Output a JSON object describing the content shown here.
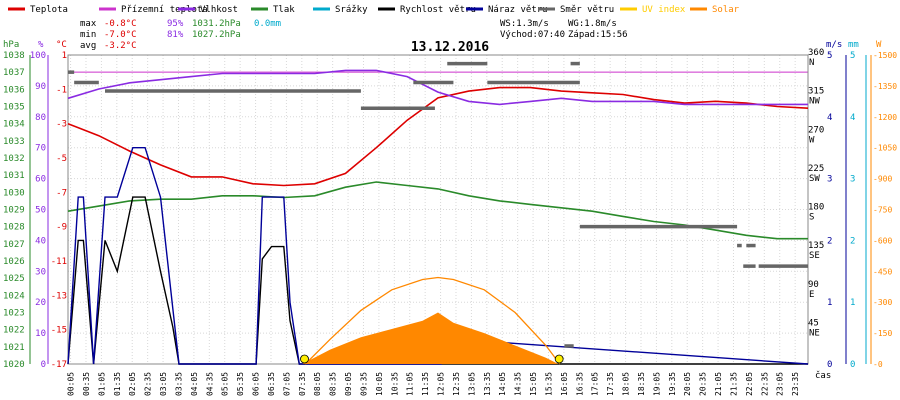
{
  "legend": [
    {
      "label": "Teplota",
      "color": "#dd0000"
    },
    {
      "label": "Přízemní teplota",
      "color": "#cc33cc"
    },
    {
      "label": "Vlhkost",
      "color": "#8a2be2"
    },
    {
      "label": "Tlak",
      "color": "#2a8a2a"
    },
    {
      "label": "Srážky",
      "color": "#00aacc"
    },
    {
      "label": "Rychlost větru",
      "color": "#000000"
    },
    {
      "label": "Náraz větru",
      "color": "#000099"
    },
    {
      "label": "Směr větru",
      "color": "#666666"
    },
    {
      "label": "UV index",
      "color": "#ffcc00"
    },
    {
      "label": "Solar",
      "color": "#ff8800"
    }
  ],
  "stats": {
    "max_label": "max",
    "max_temp": "-0.8°C",
    "max_hum": "95%",
    "max_press": "1031.2hPa",
    "max_rain": "0.0mm",
    "min_label": "min",
    "min_temp": "-7.0°C",
    "min_hum": "81%",
    "min_press": "1027.2hPa",
    "avg_label": "avg",
    "avg_temp": "-3.2°C",
    "ws": "WS:1.3m/s",
    "wg": "WG:1.8m/s",
    "sunrise": "Východ:07:40",
    "sunset": "Západ:15:56"
  },
  "chart_data": {
    "type": "line",
    "title": "13.12.2016",
    "xlabel": "čas",
    "x_ticks": [
      "00:05",
      "00:35",
      "01:05",
      "01:35",
      "02:05",
      "02:35",
      "03:05",
      "03:35",
      "04:05",
      "04:35",
      "05:05",
      "05:35",
      "06:05",
      "06:35",
      "07:05",
      "07:35",
      "08:05",
      "08:35",
      "09:05",
      "09:35",
      "10:05",
      "10:35",
      "11:05",
      "11:35",
      "12:05",
      "12:35",
      "13:05",
      "13:35",
      "14:05",
      "14:35",
      "15:05",
      "15:35",
      "16:05",
      "16:35",
      "17:05",
      "17:35",
      "18:05",
      "18:35",
      "19:05",
      "19:35",
      "20:05",
      "20:35",
      "21:05",
      "21:35",
      "22:05",
      "22:35",
      "23:05",
      "23:35"
    ],
    "axes": {
      "pressure": {
        "unit": "hPa",
        "ticks": [
          "1038",
          "1037",
          "1036",
          "1035",
          "1034",
          "1033",
          "1032",
          "1031",
          "1030",
          "1029",
          "1028",
          "1027",
          "1026",
          "1025",
          "1024",
          "1023",
          "1022",
          "1021",
          "1020"
        ],
        "ylim": [
          1020,
          1038
        ]
      },
      "humidity": {
        "unit": "%",
        "ticks": [
          "100",
          "90",
          "80",
          "70",
          "60",
          "50",
          "40",
          "30",
          "20",
          "10",
          "0"
        ],
        "ylim": [
          0,
          100
        ]
      },
      "temperature": {
        "unit": "°C",
        "ticks": [
          "1",
          "-1",
          "-3",
          "-5",
          "-7",
          "-9",
          "-11",
          "-13",
          "-15",
          "-17"
        ],
        "ylim": [
          -17,
          1
        ]
      },
      "direction": {
        "ticks": [
          "360",
          "315",
          "270",
          "225",
          "180",
          "135",
          "90",
          "45"
        ],
        "labels": [
          "N",
          "NW",
          "W",
          "SW",
          "S",
          "SE",
          "E",
          "NE"
        ],
        "ylim": [
          0,
          360
        ]
      },
      "wind": {
        "unit": "m/s",
        "ticks": [
          "5",
          "4",
          "3",
          "2",
          "1",
          "0"
        ],
        "ylim": [
          0,
          5
        ]
      },
      "rain": {
        "unit": "mm",
        "ticks": [
          "5",
          "4",
          "3",
          "2",
          "1",
          "0"
        ],
        "ylim": [
          0,
          5
        ]
      },
      "solar": {
        "unit": "W",
        "ticks": [
          "1500",
          "1350",
          "1200",
          "1050",
          "900",
          "750",
          "600",
          "450",
          "300",
          "150",
          "0"
        ],
        "ylim": [
          0,
          1500
        ]
      }
    },
    "series": [
      {
        "name": "Teplota",
        "axis": "temperature",
        "x": [
          0,
          1,
          2,
          3,
          4,
          5,
          6,
          7,
          8,
          9,
          10,
          11,
          12,
          13,
          14,
          15,
          16,
          17,
          18,
          19,
          20,
          21,
          22,
          23,
          24
        ],
        "values": [
          -3.0,
          -3.7,
          -4.6,
          -5.4,
          -6.1,
          -6.1,
          -6.5,
          -6.6,
          -6.5,
          -5.9,
          -4.4,
          -2.8,
          -1.5,
          -1.1,
          -0.9,
          -0.9,
          -1.1,
          -1.2,
          -1.3,
          -1.6,
          -1.8,
          -1.7,
          -1.8,
          -2.0,
          -2.1
        ]
      },
      {
        "name": "Vlhkost",
        "axis": "humidity",
        "x": [
          0,
          1,
          2,
          3,
          4,
          5,
          6,
          7,
          8,
          9,
          10,
          11,
          12,
          13,
          14,
          15,
          16,
          17,
          18,
          19,
          20,
          21,
          22,
          23,
          24
        ],
        "values": [
          86,
          89,
          91,
          92,
          93,
          94,
          94,
          94,
          94,
          95,
          95,
          93,
          88,
          85,
          84,
          85,
          86,
          85,
          85,
          85,
          84,
          84,
          84,
          84,
          84
        ],
        "color": "#8a2be2"
      },
      {
        "name": "Tlak",
        "axis": "pressure",
        "x": [
          0,
          1,
          2,
          3,
          4,
          5,
          6,
          7,
          8,
          9,
          10,
          11,
          12,
          13,
          14,
          15,
          16,
          17,
          18,
          19,
          20,
          21,
          22,
          23,
          24
        ],
        "values": [
          1028.9,
          1029.2,
          1029.5,
          1029.6,
          1029.6,
          1029.8,
          1029.8,
          1029.7,
          1029.8,
          1030.3,
          1030.6,
          1030.4,
          1030.2,
          1029.8,
          1029.5,
          1029.3,
          1029.1,
          1028.9,
          1028.6,
          1028.3,
          1028.1,
          1027.8,
          1027.5,
          1027.3,
          1027.3
        ]
      },
      {
        "name": "Rychlost větru",
        "axis": "wind",
        "x": [
          0,
          0.33,
          0.5,
          0.83,
          1.2,
          1.6,
          2.1,
          2.5,
          3.0,
          3.4,
          3.6,
          4.0,
          6.1,
          6.3,
          6.6,
          7.0,
          7.2,
          7.5,
          24
        ],
        "values": [
          0,
          2,
          2,
          0,
          2,
          1.5,
          2.7,
          2.7,
          1.5,
          0.6,
          0,
          0,
          0,
          1.7,
          1.9,
          1.9,
          0.7,
          0,
          0
        ]
      },
      {
        "name": "Náraz větru",
        "axis": "wind",
        "x": [
          0,
          0.33,
          0.5,
          0.83,
          1.2,
          1.6,
          2.1,
          2.5,
          3.0,
          3.4,
          3.6,
          4.0,
          6.1,
          6.3,
          6.6,
          7.0,
          7.2,
          7.5,
          12.1,
          12.3,
          12.6,
          24
        ],
        "values": [
          0,
          2.7,
          2.7,
          0,
          2.7,
          2.7,
          3.5,
          3.5,
          2.7,
          0.9,
          0,
          0,
          0,
          2.7,
          2.7,
          2.7,
          1.0,
          0,
          0,
          0.4,
          0.4,
          0
        ]
      },
      {
        "name": "Solar",
        "axis": "solar",
        "x": [
          7.6,
          8.5,
          9.5,
          10.5,
          11.5,
          12.0,
          12.5,
          13.5,
          14.5,
          15.5,
          15.9
        ],
        "values": [
          0,
          70,
          130,
          170,
          210,
          250,
          200,
          150,
          90,
          30,
          0
        ]
      },
      {
        "name": "Solar max",
        "axis": "solar",
        "x": [
          7.7,
          8.5,
          9.5,
          10.5,
          11.5,
          12.0,
          12.5,
          13.5,
          14.5,
          15.5,
          15.95
        ],
        "values": [
          0,
          120,
          260,
          360,
          410,
          420,
          410,
          360,
          250,
          90,
          0
        ]
      }
    ],
    "wind_direction_segments": [
      {
        "start": 0,
        "end": 0.2,
        "deg": 340
      },
      {
        "start": 0.2,
        "end": 1.0,
        "deg": 328
      },
      {
        "start": 1.2,
        "end": 9.5,
        "deg": 318
      },
      {
        "start": 9.5,
        "end": 11.9,
        "deg": 298
      },
      {
        "start": 11.2,
        "end": 12.5,
        "deg": 328
      },
      {
        "start": 12.3,
        "end": 13.6,
        "deg": 350
      },
      {
        "start": 13.6,
        "end": 16.6,
        "deg": 328
      },
      {
        "start": 16.3,
        "end": 16.6,
        "deg": 350
      },
      {
        "start": 16.6,
        "end": 21.7,
        "deg": 160
      },
      {
        "start": 21.7,
        "end": 21.85,
        "deg": 138
      },
      {
        "start": 22.0,
        "end": 22.3,
        "deg": 138
      },
      {
        "start": 21.9,
        "end": 22.3,
        "deg": 114
      },
      {
        "start": 22.4,
        "end": 24,
        "deg": 114
      },
      {
        "start": 16.1,
        "end": 16.4,
        "deg": 21
      }
    ],
    "sun_markers": [
      {
        "x": 7.67
      },
      {
        "x": 15.93
      }
    ],
    "grid": true
  }
}
